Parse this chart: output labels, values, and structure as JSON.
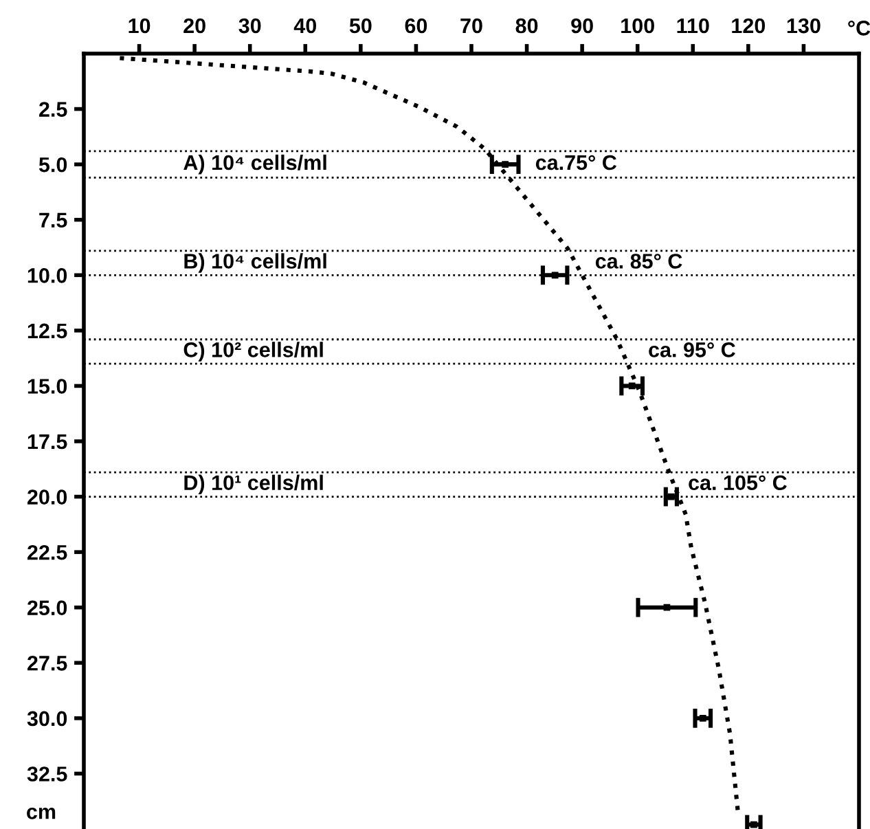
{
  "chart_data": {
    "type": "line",
    "xlabel": "°C",
    "ylabel": "cm",
    "xlim": [
      0,
      140
    ],
    "xticks": [
      10,
      20,
      30,
      40,
      50,
      60,
      70,
      80,
      90,
      100,
      110,
      120,
      130
    ],
    "ylim": [
      35,
      0
    ],
    "yticks": [
      2.5,
      {
        "value": 5,
        "label": "5.0"
      },
      7.5,
      {
        "value": 10,
        "label": "10.0"
      },
      12.5,
      {
        "value": 15,
        "label": "15.0"
      },
      17.5,
      {
        "value": 20,
        "label": "20.0"
      },
      22.5,
      {
        "value": 25,
        "label": "25.0"
      },
      27.5,
      {
        "value": 30,
        "label": "30.0"
      },
      32.5
    ],
    "grid": false,
    "legend": false,
    "series": [
      {
        "color": "#000000",
        "line_style": "dotted",
        "marker": "none",
        "x": [
          6.5,
          40.6,
          44.6,
          50.5,
          60.5,
          67.4,
          72.4,
          78.4,
          87.4,
          96.3,
          100.3,
          105.7,
          108.7,
          109.7,
          112.2,
          114.7,
          116.7,
          118.2
        ],
        "values": [
          0.2,
          0.8,
          0.9,
          1.3,
          2.4,
          3.3,
          4.3,
          6.1,
          8.8,
          12.9,
          15.2,
          18.9,
          20.8,
          22.3,
          24.8,
          27.8,
          30.7,
          34.4
        ]
      },
      {
        "type": "scatter",
        "color": "#000000",
        "marker": "square",
        "x": [
          76.1,
          85.1,
          99.0,
          106.1,
          105.3,
          111.8,
          121.0
        ],
        "values": [
          5,
          10,
          15,
          20,
          25,
          30,
          34.8
        ],
        "xerrors": [
          2.4,
          2.2,
          1.9,
          1.0,
          5.2,
          1.4,
          1.2
        ]
      }
    ],
    "ref_lines": [
      {
        "axis": "y",
        "value": 4.4,
        "line_style": "dotted",
        "color": "#000000"
      },
      {
        "axis": "y",
        "value": 5.6,
        "line_style": "dotted",
        "color": "#000000"
      },
      {
        "axis": "y",
        "value": 8.9,
        "line_style": "dotted",
        "color": "#000000"
      },
      {
        "axis": "y",
        "value": 10.0,
        "line_style": "dotted",
        "color": "#000000"
      },
      {
        "axis": "y",
        "value": 12.9,
        "line_style": "dotted",
        "color": "#000000"
      },
      {
        "axis": "y",
        "value": 14.0,
        "line_style": "dotted",
        "color": "#000000"
      },
      {
        "axis": "y",
        "value": 18.9,
        "line_style": "dotted",
        "color": "#000000"
      },
      {
        "axis": "y",
        "value": 20.0,
        "line_style": "dotted",
        "color": "#000000"
      }
    ],
    "annotations": [
      "A) 10⁴ cells/ml",
      "ca.75° C",
      "B) 10⁴ cells/ml",
      "ca. 85° C",
      "C) 10² cells/ml",
      "ca. 95° C",
      "D) 10¹ cells/ml",
      "ca. 105° C"
    ]
  }
}
